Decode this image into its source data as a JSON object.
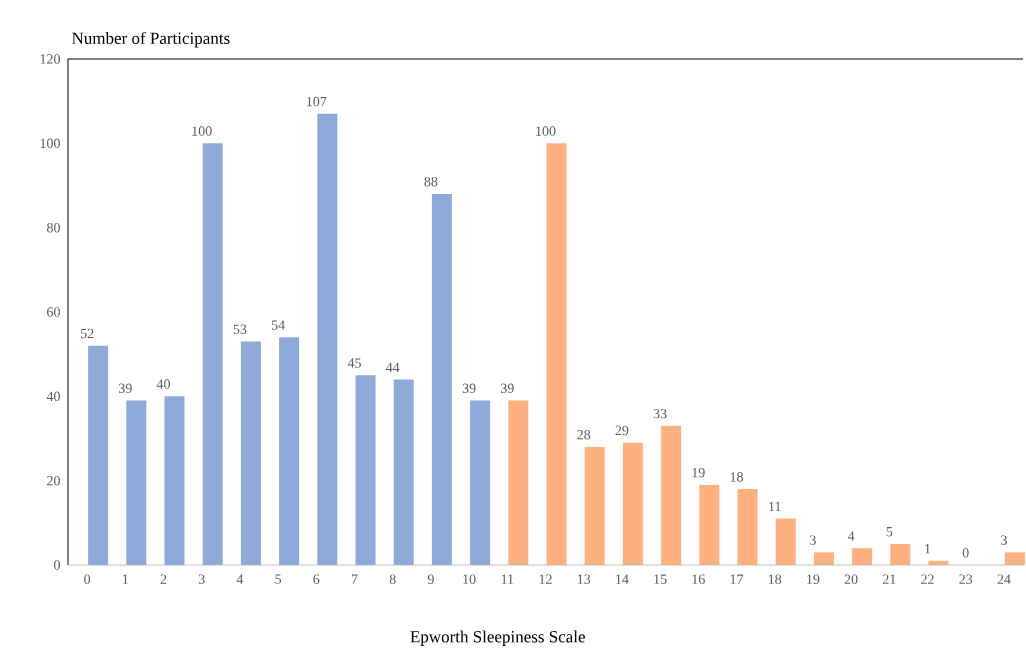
{
  "chart_data": {
    "type": "bar",
    "xlabel": "Epworth Sleepiness Scale",
    "ylabel": "Number of Participants",
    "categories": [
      "0",
      "1",
      "2",
      "3",
      "4",
      "5",
      "6",
      "7",
      "8",
      "9",
      "10",
      "11",
      "12",
      "13",
      "14",
      "15",
      "16",
      "17",
      "18",
      "19",
      "20",
      "21",
      "22",
      "23",
      "24"
    ],
    "values": [
      52,
      39,
      40,
      100,
      53,
      54,
      107,
      45,
      44,
      88,
      39,
      39,
      100,
      28,
      29,
      33,
      19,
      18,
      11,
      3,
      4,
      5,
      1,
      0,
      3
    ],
    "colors": [
      "#8eaadb",
      "#8eaadb",
      "#8eaadb",
      "#8eaadb",
      "#8eaadb",
      "#8eaadb",
      "#8eaadb",
      "#8eaadb",
      "#8eaadb",
      "#8eaadb",
      "#8eaadb",
      "#ffb07f",
      "#ffb07f",
      "#ffb07f",
      "#ffb07f",
      "#ffb07f",
      "#ffb07f",
      "#ffb07f",
      "#ffb07f",
      "#ffb07f",
      "#ffb07f",
      "#ffb07f",
      "#ffb07f",
      "#ffb07f",
      "#ffb07f"
    ],
    "ylim": [
      0,
      120
    ],
    "yticks": [
      0,
      20,
      40,
      60,
      80,
      100,
      120
    ],
    "data_labels": true,
    "grid": false
  }
}
